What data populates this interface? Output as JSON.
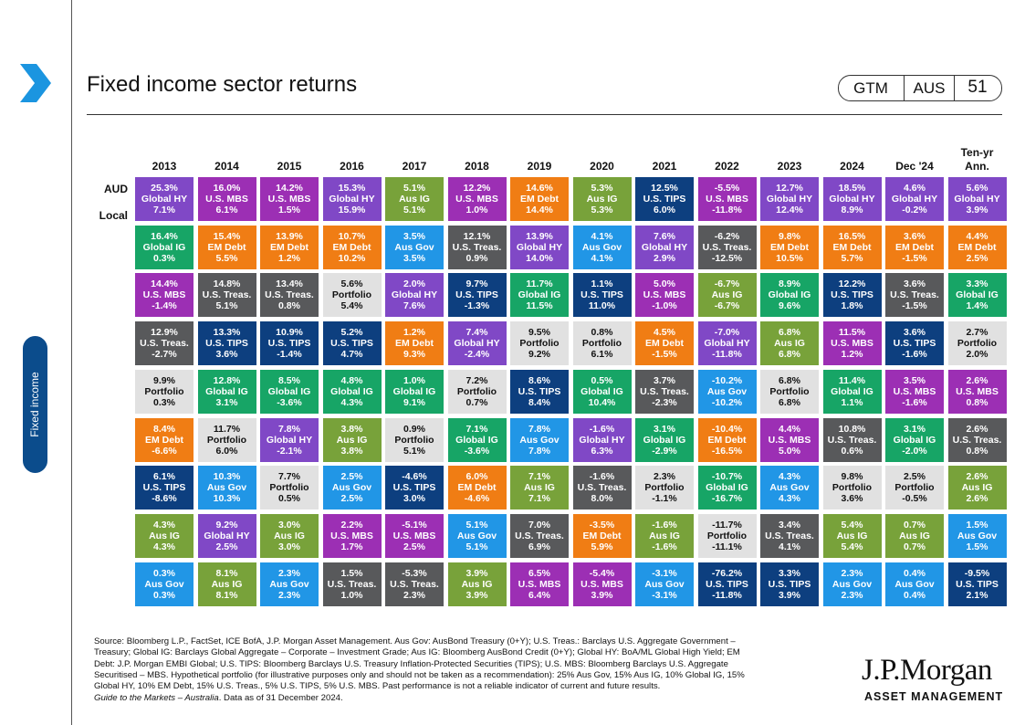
{
  "header": {
    "title": "Fixed income sector returns",
    "badge": [
      "GTM",
      "AUS",
      "51"
    ]
  },
  "sidebar_label": "Fixed income",
  "sector_colors": {
    "Global HY": {
      "fill": "#8048c6",
      "text": "#ffffff"
    },
    "U.S. MBS": {
      "fill": "#9c2fb4",
      "text": "#ffffff"
    },
    "EM Debt": {
      "fill": "#f07d14",
      "text": "#ffffff"
    },
    "Aus IG": {
      "fill": "#78a23a",
      "text": "#ffffff"
    },
    "Aus Gov": {
      "fill": "#2196e6",
      "text": "#ffffff"
    },
    "U.S. TIPS": {
      "fill": "#0d3f7f",
      "text": "#ffffff"
    },
    "Global IG": {
      "fill": "#17a566",
      "text": "#ffffff"
    },
    "U.S. Treas.": {
      "fill": "#58595b",
      "text": "#ffffff"
    },
    "Portfolio": {
      "fill": "#e1e1e1",
      "text": "#111111"
    }
  },
  "table": {
    "row_labels": [
      "AUD",
      "Local"
    ],
    "columns": [
      "2013",
      "2014",
      "2015",
      "2016",
      "2017",
      "2018",
      "2019",
      "2020",
      "2021",
      "2022",
      "2023",
      "2024",
      "Dec '24",
      "Ten-yr Ann."
    ],
    "cells": [
      [
        [
          "25.3%",
          "Global HY",
          "7.1%"
        ],
        [
          "16.4%",
          "Global IG",
          "0.3%"
        ],
        [
          "14.4%",
          "U.S. MBS",
          "-1.4%"
        ],
        [
          "12.9%",
          "U.S. Treas.",
          "-2.7%"
        ],
        [
          "9.9%",
          "Portfolio",
          "0.3%"
        ],
        [
          "8.4%",
          "EM Debt",
          "-6.6%"
        ],
        [
          "6.1%",
          "U.S. TIPS",
          "-8.6%"
        ],
        [
          "4.3%",
          "Aus IG",
          "4.3%"
        ],
        [
          "0.3%",
          "Aus Gov",
          "0.3%"
        ]
      ],
      [
        [
          "16.0%",
          "U.S. MBS",
          "6.1%"
        ],
        [
          "15.4%",
          "EM Debt",
          "5.5%"
        ],
        [
          "14.8%",
          "U.S. Treas.",
          "5.1%"
        ],
        [
          "13.3%",
          "U.S. TIPS",
          "3.6%"
        ],
        [
          "12.8%",
          "Global IG",
          "3.1%"
        ],
        [
          "11.7%",
          "Portfolio",
          "6.0%"
        ],
        [
          "10.3%",
          "Aus Gov",
          "10.3%"
        ],
        [
          "9.2%",
          "Global HY",
          "2.5%"
        ],
        [
          "8.1%",
          "Aus IG",
          "8.1%"
        ]
      ],
      [
        [
          "14.2%",
          "U.S. MBS",
          "1.5%"
        ],
        [
          "13.9%",
          "EM Debt",
          "1.2%"
        ],
        [
          "13.4%",
          "U.S. Treas.",
          "0.8%"
        ],
        [
          "10.9%",
          "U.S. TIPS",
          "-1.4%"
        ],
        [
          "8.5%",
          "Global IG",
          "-3.6%"
        ],
        [
          "7.8%",
          "Global HY",
          "-2.1%"
        ],
        [
          "7.7%",
          "Portfolio",
          "0.5%"
        ],
        [
          "3.0%",
          "Aus IG",
          "3.0%"
        ],
        [
          "2.3%",
          "Aus Gov",
          "2.3%"
        ]
      ],
      [
        [
          "15.3%",
          "Global HY",
          "15.9%"
        ],
        [
          "10.7%",
          "EM Debt",
          "10.2%"
        ],
        [
          "5.6%",
          "Portfolio",
          "5.4%"
        ],
        [
          "5.2%",
          "U.S. TIPS",
          "4.7%"
        ],
        [
          "4.8%",
          "Global IG",
          "4.3%"
        ],
        [
          "3.8%",
          "Aus IG",
          "3.8%"
        ],
        [
          "2.5%",
          "Aus Gov",
          "2.5%"
        ],
        [
          "2.2%",
          "U.S. MBS",
          "1.7%"
        ],
        [
          "1.5%",
          "U.S. Treas.",
          "1.0%"
        ]
      ],
      [
        [
          "5.1%",
          "Aus IG",
          "5.1%"
        ],
        [
          "3.5%",
          "Aus Gov",
          "3.5%"
        ],
        [
          "2.0%",
          "Global HY",
          "7.6%"
        ],
        [
          "1.2%",
          "EM Debt",
          "9.3%"
        ],
        [
          "1.0%",
          "Global IG",
          "9.1%"
        ],
        [
          "0.9%",
          "Portfolio",
          "5.1%"
        ],
        [
          "-4.6%",
          "U.S. TIPS",
          "3.0%"
        ],
        [
          "-5.1%",
          "U.S. MBS",
          "2.5%"
        ],
        [
          "-5.3%",
          "U.S. Treas.",
          "2.3%"
        ]
      ],
      [
        [
          "12.2%",
          "U.S. MBS",
          "1.0%"
        ],
        [
          "12.1%",
          "U.S. Treas.",
          "0.9%"
        ],
        [
          "9.7%",
          "U.S. TIPS",
          "-1.3%"
        ],
        [
          "7.4%",
          "Global HY",
          "-2.4%"
        ],
        [
          "7.2%",
          "Portfolio",
          "0.7%"
        ],
        [
          "7.1%",
          "Global IG",
          "-3.6%"
        ],
        [
          "6.0%",
          "EM Debt",
          "-4.6%"
        ],
        [
          "5.1%",
          "Aus Gov",
          "5.1%"
        ],
        [
          "3.9%",
          "Aus IG",
          "3.9%"
        ]
      ],
      [
        [
          "14.6%",
          "EM Debt",
          "14.4%"
        ],
        [
          "13.9%",
          "Global HY",
          "14.0%"
        ],
        [
          "11.7%",
          "Global IG",
          "11.5%"
        ],
        [
          "9.5%",
          "Portfolio",
          "9.2%"
        ],
        [
          "8.6%",
          "U.S. TIPS",
          "8.4%"
        ],
        [
          "7.8%",
          "Aus Gov",
          "7.8%"
        ],
        [
          "7.1%",
          "Aus IG",
          "7.1%"
        ],
        [
          "7.0%",
          "U.S. Treas.",
          "6.9%"
        ],
        [
          "6.5%",
          "U.S. MBS",
          "6.4%"
        ]
      ],
      [
        [
          "5.3%",
          "Aus IG",
          "5.3%"
        ],
        [
          "4.1%",
          "Aus Gov",
          "4.1%"
        ],
        [
          "1.1%",
          "U.S. TIPS",
          "11.0%"
        ],
        [
          "0.8%",
          "Portfolio",
          "6.1%"
        ],
        [
          "0.5%",
          "Global IG",
          "10.4%"
        ],
        [
          "-1.6%",
          "Global HY",
          "6.3%"
        ],
        [
          "-1.6%",
          "U.S. Treas.",
          "8.0%"
        ],
        [
          "-3.5%",
          "EM Debt",
          "5.9%"
        ],
        [
          "-5.4%",
          "U.S. MBS",
          "3.9%"
        ]
      ],
      [
        [
          "12.5%",
          "U.S. TIPS",
          "6.0%"
        ],
        [
          "7.6%",
          "Global HY",
          "2.9%"
        ],
        [
          "5.0%",
          "U.S. MBS",
          "-1.0%"
        ],
        [
          "4.5%",
          "EM Debt",
          "-1.5%"
        ],
        [
          "3.7%",
          "U.S. Treas.",
          "-2.3%"
        ],
        [
          "3.1%",
          "Global IG",
          "-2.9%"
        ],
        [
          "2.3%",
          "Portfolio",
          "-1.1%"
        ],
        [
          "-1.6%",
          "Aus IG",
          "-1.6%"
        ],
        [
          "-3.1%",
          "Aus Gov",
          "-3.1%"
        ]
      ],
      [
        [
          "-5.5%",
          "U.S. MBS",
          "-11.8%"
        ],
        [
          "-6.2%",
          "U.S. Treas.",
          "-12.5%"
        ],
        [
          "-6.7%",
          "Aus IG",
          "-6.7%"
        ],
        [
          "-7.0%",
          "Global HY",
          "-11.8%"
        ],
        [
          "-10.2%",
          "Aus Gov",
          "-10.2%"
        ],
        [
          "-10.4%",
          "EM Debt",
          "-16.5%"
        ],
        [
          "-10.7%",
          "Global IG",
          "-16.7%"
        ],
        [
          "-11.7%",
          "Portfolio",
          "-11.1%"
        ],
        [
          "-76.2%",
          "U.S. TIPS",
          "-11.8%"
        ]
      ],
      [
        [
          "12.7%",
          "Global HY",
          "12.4%"
        ],
        [
          "9.8%",
          "EM Debt",
          "10.5%"
        ],
        [
          "8.9%",
          "Global IG",
          "9.6%"
        ],
        [
          "6.8%",
          "Aus IG",
          "6.8%"
        ],
        [
          "6.8%",
          "Portfolio",
          "6.8%"
        ],
        [
          "4.4%",
          "U.S. MBS",
          "5.0%"
        ],
        [
          "4.3%",
          "Aus Gov",
          "4.3%"
        ],
        [
          "3.4%",
          "U.S. Treas.",
          "4.1%"
        ],
        [
          "3.3%",
          "U.S. TIPS",
          "3.9%"
        ]
      ],
      [
        [
          "18.5%",
          "Global HY",
          "8.9%"
        ],
        [
          "16.5%",
          "EM Debt",
          "5.7%"
        ],
        [
          "12.2%",
          "U.S. TIPS",
          "1.8%"
        ],
        [
          "11.5%",
          "U.S. MBS",
          "1.2%"
        ],
        [
          "11.4%",
          "Global IG",
          "1.1%"
        ],
        [
          "10.8%",
          "U.S. Treas.",
          "0.6%"
        ],
        [
          "9.8%",
          "Portfolio",
          "3.6%"
        ],
        [
          "5.4%",
          "Aus IG",
          "5.4%"
        ],
        [
          "2.3%",
          "Aus Gov",
          "2.3%"
        ]
      ],
      [
        [
          "4.6%",
          "Global HY",
          "-0.2%"
        ],
        [
          "3.6%",
          "EM Debt",
          "-1.5%"
        ],
        [
          "3.6%",
          "U.S. Treas.",
          "-1.5%"
        ],
        [
          "3.6%",
          "U.S. TIPS",
          "-1.6%"
        ],
        [
          "3.5%",
          "U.S. MBS",
          "-1.6%"
        ],
        [
          "3.1%",
          "Global IG",
          "-2.0%"
        ],
        [
          "2.5%",
          "Portfolio",
          "-0.5%"
        ],
        [
          "0.7%",
          "Aus IG",
          "0.7%"
        ],
        [
          "0.4%",
          "Aus Gov",
          "0.4%"
        ]
      ],
      [
        [
          "5.6%",
          "Global HY",
          "3.9%"
        ],
        [
          "4.4%",
          "EM Debt",
          "2.5%"
        ],
        [
          "3.3%",
          "Global IG",
          "1.4%"
        ],
        [
          "2.7%",
          "Portfolio",
          "2.0%"
        ],
        [
          "2.6%",
          "U.S. MBS",
          "0.8%"
        ],
        [
          "2.6%",
          "U.S. Treas.",
          "0.8%"
        ],
        [
          "2.6%",
          "Aus IG",
          "2.6%"
        ],
        [
          "1.5%",
          "Aus Gov",
          "1.5%"
        ],
        [
          "-9.5%",
          "U.S. TIPS",
          "2.1%"
        ]
      ]
    ]
  },
  "footnote": {
    "lines": [
      "Source: Bloomberg L.P., FactSet, ICE  BofA, J.P. Morgan Asset Management. Aus Gov: AusBond Treasury (0+Y); U.S. Treas.: Barclays U.S. Aggregate Government –",
      "Treasury; Global IG: Barclays Global Aggregate – Corporate – Investment Grade; Aus IG: Bloomberg AusBond Credit (0+Y); Global HY: BoA/ML Global High Yield; EM",
      "Debt: J.P. Morgan EMBI  Global; U.S. TIPS:  Bloomberg Barclays U.S. Treasury Inflation-Protected Securities (TIPS);  U.S. MBS: Bloomberg Barclays U.S. Aggregate",
      "Securitised – MBS. Hypothetical portfolio (for illustrative purposes only and should not be taken  as a recommendation): 25% Aus Gov, 15% Aus IG, 10% Global IG, 15%",
      "Global HY, 10% EM  Debt,  15% U.S. Treas., 5% U.S. TIPS,  5% U.S. MBS. Past performance is not a reliable indicator of current and future results."
    ],
    "publication": "Guide to the Markets – Australia",
    "date_note": ". Data as of 31 December 2024."
  },
  "logo": {
    "name": "J.P.Morgan",
    "subtitle": "ASSET MANAGEMENT"
  }
}
